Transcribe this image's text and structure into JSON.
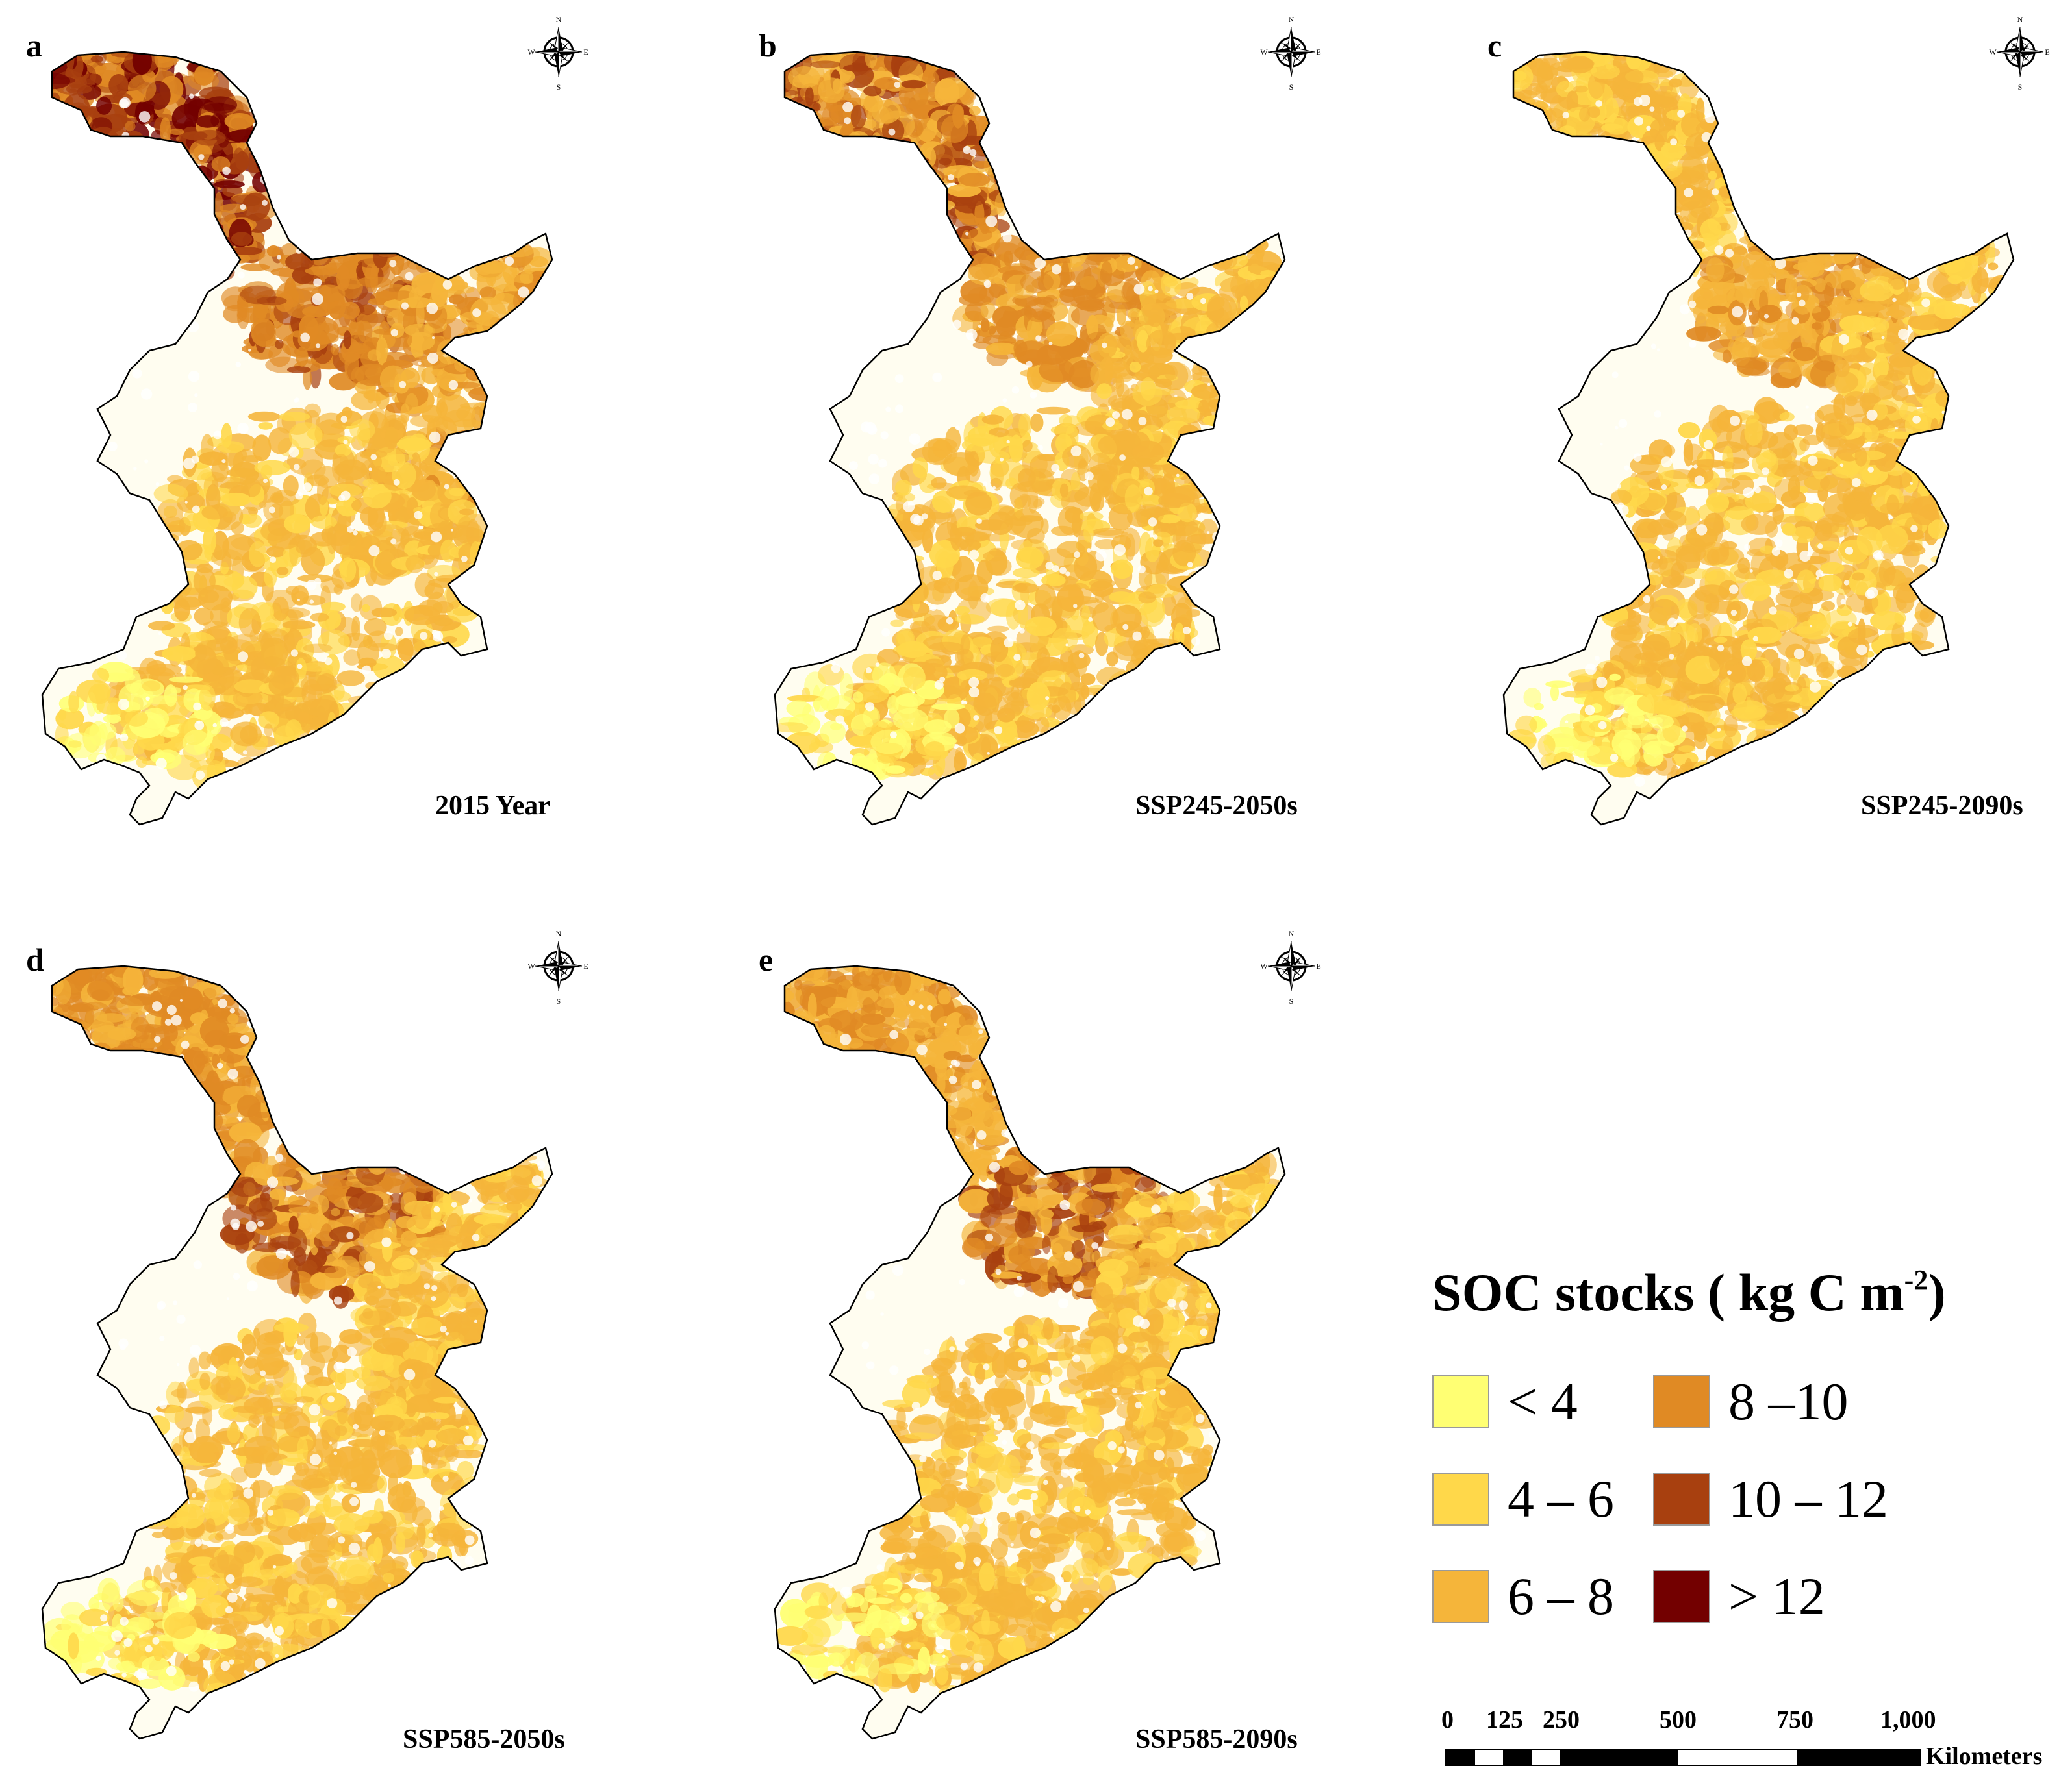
{
  "panels": [
    {
      "letter": "a",
      "caption": "2015 Year",
      "tone": "p2015"
    },
    {
      "letter": "b",
      "caption": "SSP245-2050s",
      "tone": "p245_50"
    },
    {
      "letter": "c",
      "caption": "SSP245-2090s",
      "tone": "p245_90"
    },
    {
      "letter": "d",
      "caption": "SSP585-2050s",
      "tone": "p585_50"
    },
    {
      "letter": "e",
      "caption": "SSP585-2090s",
      "tone": "p585_90"
    }
  ],
  "compass": {
    "n": "N",
    "s": "S",
    "e": "E",
    "w": "W"
  },
  "legend": {
    "title": "SOC stocks ( kg C m",
    "title_sup": "-2",
    "title_close": ")",
    "items": [
      {
        "label": "< 4",
        "color": "#ffff73"
      },
      {
        "label": "4 – 6",
        "color": "#ffd84a"
      },
      {
        "label": "6 – 8",
        "color": "#f5b53a"
      },
      {
        "label": "8 –10",
        "color": "#e08a24"
      },
      {
        "label": "10 – 12",
        "color": "#a8400f"
      },
      {
        "label": "> 12",
        "color": "#730000"
      }
    ]
  },
  "scalebar": {
    "ticks": [
      "0",
      "125",
      "250",
      "500",
      "750",
      "1,000"
    ],
    "tick_values_km": [
      0,
      125,
      250,
      500,
      750,
      1000
    ],
    "unit": "Kilometers"
  }
}
